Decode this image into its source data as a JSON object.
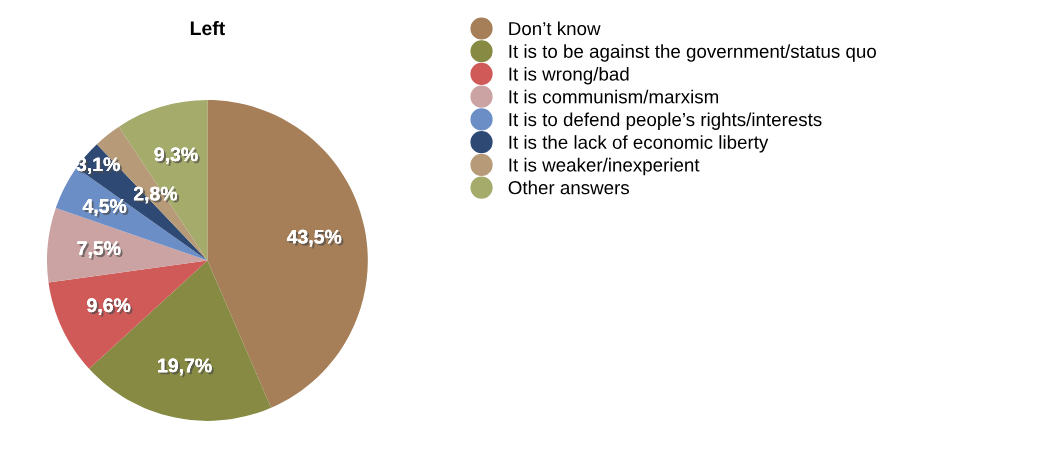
{
  "chart_data": {
    "type": "pie",
    "title": "Left",
    "categories": [
      "Don’t know",
      "It is to be against the government/status quo",
      "It is wrong/bad",
      "It is communism/marxism",
      "It is to defend people’s rights/interests",
      "It is the lack of economic liberty",
      "It is weaker/inexperient",
      "Other answers"
    ],
    "values": [
      43.5,
      19.7,
      9.6,
      7.5,
      4.5,
      3.1,
      2.8,
      9.3
    ],
    "value_labels": [
      "43,5%",
      "19,7%",
      "9,6%",
      "7,5%",
      "4,5%",
      "3,1%",
      "2,8%",
      "9,3%"
    ],
    "colors": [
      "#a67f59",
      "#868a42",
      "#cf5a58",
      "#cba3a3",
      "#6b8ec6",
      "#2e4a74",
      "#b79a78",
      "#a5ab6b"
    ],
    "legend": "right"
  }
}
